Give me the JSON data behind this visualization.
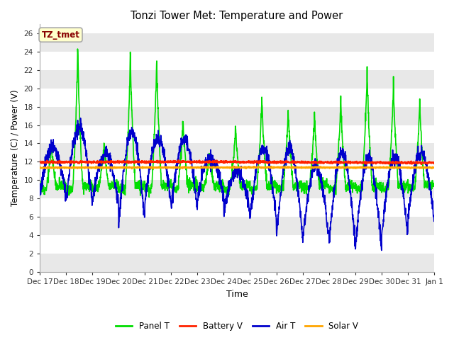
{
  "title": "Tonzi Tower Met: Temperature and Power",
  "xlabel": "Time",
  "ylabel": "Temperature (C) / Power (V)",
  "ylim": [
    0,
    27
  ],
  "yticks": [
    0,
    2,
    4,
    6,
    8,
    10,
    12,
    14,
    16,
    18,
    20,
    22,
    24,
    26
  ],
  "annotation_text": "TZ_tmet",
  "annotation_bg": "#FFFFCC",
  "annotation_border": "#AAAAAA",
  "annotation_text_color": "#880000",
  "fig_bg": "#FFFFFF",
  "plot_bg": "#FFFFFF",
  "band_color": "#E8E8E8",
  "grid_color": "#FFFFFF",
  "panel_t_color": "#00DD00",
  "battery_v_color": "#FF2200",
  "air_t_color": "#0000CC",
  "solar_v_color": "#FFA500",
  "n_days": 15,
  "pts_per_day": 144,
  "tick_labels": [
    "Dec 17",
    "Dec 18",
    "Dec 19",
    "Dec 20",
    "Dec 21",
    "Dec 22",
    "Dec 23",
    "Dec 24",
    "Dec 25",
    "Dec 26",
    "Dec 27",
    "Dec 28",
    "Dec 29",
    "Dec 30",
    "Dec 31",
    "Jan 1"
  ],
  "panel_peaks": [
    14.0,
    25.0,
    14.0,
    24.0,
    23.5,
    16.7,
    13.0,
    16.0,
    19.5,
    18.0,
    17.5,
    19.2,
    22.5,
    21.0,
    19.0
  ],
  "air_highs": [
    13.5,
    15.8,
    13.0,
    15.3,
    14.5,
    14.5,
    12.5,
    11.0,
    13.5,
    13.5,
    11.5,
    13.0,
    12.5,
    12.5,
    13.0
  ],
  "air_lows": [
    8.5,
    7.5,
    7.5,
    5.3,
    7.5,
    7.0,
    8.0,
    6.5,
    5.8,
    3.7,
    3.5,
    3.0,
    2.6,
    4.0,
    5.8
  ],
  "battery_mean": 11.95,
  "solar_mean": 11.35
}
